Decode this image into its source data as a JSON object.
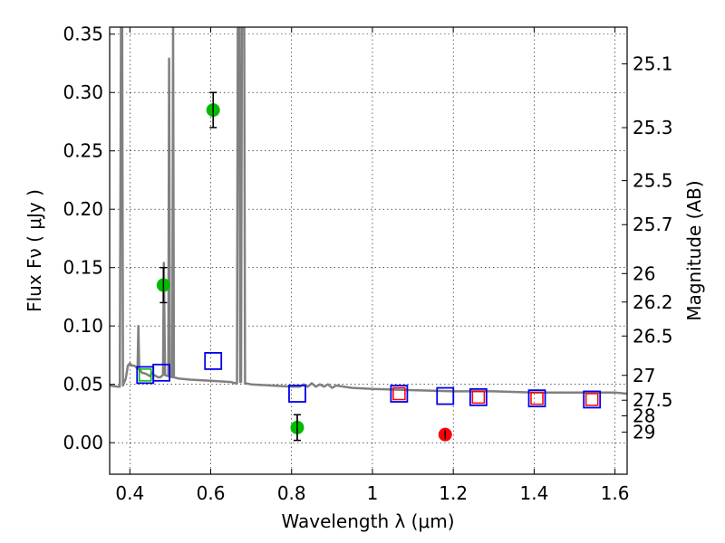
{
  "chart_data": {
    "type": "scatter",
    "xlabel": "Wavelength  λ (μm)",
    "ylabel": "Flux  Fν  ( μJy )",
    "ylabel_right": "Magnitude (AB)",
    "xlim": [
      0.35,
      1.63
    ],
    "ylim": [
      -0.027,
      0.356
    ],
    "grid": true,
    "x_ticks": [
      {
        "value": 0.4,
        "label": "0.4"
      },
      {
        "value": 0.6,
        "label": "0.6"
      },
      {
        "value": 0.8,
        "label": "0.8"
      },
      {
        "value": 1.0,
        "label": "1"
      },
      {
        "value": 1.2,
        "label": "1.2"
      },
      {
        "value": 1.4,
        "label": "1.4"
      },
      {
        "value": 1.6,
        "label": "1.6"
      }
    ],
    "y_ticks": [
      {
        "value": 0.0,
        "label": "0.00"
      },
      {
        "value": 0.05,
        "label": "0.05"
      },
      {
        "value": 0.1,
        "label": "0.10"
      },
      {
        "value": 0.15,
        "label": "0.15"
      },
      {
        "value": 0.2,
        "label": "0.20"
      },
      {
        "value": 0.25,
        "label": "0.25"
      },
      {
        "value": 0.3,
        "label": "0.30"
      },
      {
        "value": 0.35,
        "label": "0.35"
      }
    ],
    "right_ticks": [
      {
        "label": "25.1",
        "flux": 0.3245
      },
      {
        "label": "25.3",
        "flux": 0.2699
      },
      {
        "label": "25.5",
        "flux": 0.2245
      },
      {
        "label": "25.7",
        "flux": 0.1868
      },
      {
        "label": "26",
        "flux": 0.1449
      },
      {
        "label": "26.2",
        "flux": 0.1205
      },
      {
        "label": "26.5",
        "flux": 0.0914
      },
      {
        "label": "27",
        "flux": 0.0577
      },
      {
        "label": "27.5",
        "flux": 0.0364
      },
      {
        "label": "28",
        "flux": 0.023
      },
      {
        "label": "29",
        "flux": 0.0091
      }
    ],
    "series": [
      {
        "kind": "line",
        "color": "#808080",
        "points": [
          [
            0.35,
            0.049
          ],
          [
            0.37,
            0.048
          ],
          [
            0.375,
            0.048
          ],
          [
            0.378,
            0.355
          ],
          [
            0.381,
            0.355
          ],
          [
            0.383,
            0.049
          ],
          [
            0.39,
            0.055
          ],
          [
            0.395,
            0.066
          ],
          [
            0.4,
            0.068
          ],
          [
            0.405,
            0.066
          ],
          [
            0.41,
            0.066
          ],
          [
            0.415,
            0.065
          ],
          [
            0.419,
            0.063
          ],
          [
            0.421,
            0.1
          ],
          [
            0.423,
            0.063
          ],
          [
            0.43,
            0.06
          ],
          [
            0.44,
            0.059
          ],
          [
            0.445,
            0.058
          ],
          [
            0.45,
            0.057
          ],
          [
            0.455,
            0.06
          ],
          [
            0.46,
            0.058
          ],
          [
            0.465,
            0.057
          ],
          [
            0.47,
            0.056
          ],
          [
            0.475,
            0.056
          ],
          [
            0.482,
            0.058
          ],
          [
            0.484,
            0.154
          ],
          [
            0.487,
            0.058
          ],
          [
            0.495,
            0.057
          ],
          [
            0.497,
            0.329
          ],
          [
            0.499,
            0.057
          ],
          [
            0.505,
            0.056
          ],
          [
            0.507,
            0.356
          ],
          [
            0.509,
            0.056
          ],
          [
            0.52,
            0.055
          ],
          [
            0.55,
            0.054
          ],
          [
            0.6,
            0.053
          ],
          [
            0.65,
            0.052
          ],
          [
            0.66,
            0.051
          ],
          [
            0.665,
            0.051
          ],
          [
            0.667,
            0.356
          ],
          [
            0.671,
            0.356
          ],
          [
            0.673,
            0.052
          ],
          [
            0.675,
            0.052
          ],
          [
            0.677,
            0.356
          ],
          [
            0.683,
            0.356
          ],
          [
            0.685,
            0.051
          ],
          [
            0.7,
            0.05
          ],
          [
            0.75,
            0.049
          ],
          [
            0.8,
            0.048
          ],
          [
            0.82,
            0.048
          ],
          [
            0.83,
            0.05
          ],
          [
            0.84,
            0.048
          ],
          [
            0.85,
            0.051
          ],
          [
            0.86,
            0.048
          ],
          [
            0.87,
            0.05
          ],
          [
            0.88,
            0.048
          ],
          [
            0.89,
            0.05
          ],
          [
            0.9,
            0.047
          ],
          [
            0.91,
            0.049
          ],
          [
            0.95,
            0.047
          ],
          [
            1.0,
            0.046
          ],
          [
            1.1,
            0.045
          ],
          [
            1.2,
            0.044
          ],
          [
            1.3,
            0.044
          ],
          [
            1.4,
            0.043
          ],
          [
            1.5,
            0.043
          ],
          [
            1.6,
            0.043
          ],
          [
            1.63,
            0.042
          ]
        ]
      },
      {
        "kind": "points-with-error",
        "color": "#00bb00",
        "points": [
          {
            "x": 0.483,
            "y": 0.135,
            "err": 0.015
          },
          {
            "x": 0.606,
            "y": 0.285,
            "err": 0.015
          },
          {
            "x": 0.814,
            "y": 0.013,
            "err": 0.011
          }
        ]
      },
      {
        "kind": "points-with-error",
        "color": "#ff0000",
        "points": [
          {
            "x": 1.18,
            "y": 0.007,
            "err": 0.004
          }
        ]
      },
      {
        "kind": "open-squares",
        "color": "#0000ee",
        "points": [
          {
            "x": 0.438,
            "y": 0.058
          },
          {
            "x": 0.478,
            "y": 0.06
          },
          {
            "x": 0.606,
            "y": 0.07
          },
          {
            "x": 0.814,
            "y": 0.042
          },
          {
            "x": 1.066,
            "y": 0.042
          },
          {
            "x": 1.18,
            "y": 0.04
          },
          {
            "x": 1.262,
            "y": 0.039
          },
          {
            "x": 1.407,
            "y": 0.038
          },
          {
            "x": 1.543,
            "y": 0.037
          }
        ]
      },
      {
        "kind": "open-squares",
        "color": "#ff0000",
        "points": [
          {
            "x": 1.066,
            "y": 0.042
          },
          {
            "x": 1.262,
            "y": 0.039
          },
          {
            "x": 1.407,
            "y": 0.038
          },
          {
            "x": 1.543,
            "y": 0.037
          }
        ]
      },
      {
        "kind": "open-squares",
        "color": "#00bb00",
        "points": [
          {
            "x": 0.438,
            "y": 0.058
          }
        ]
      }
    ]
  }
}
